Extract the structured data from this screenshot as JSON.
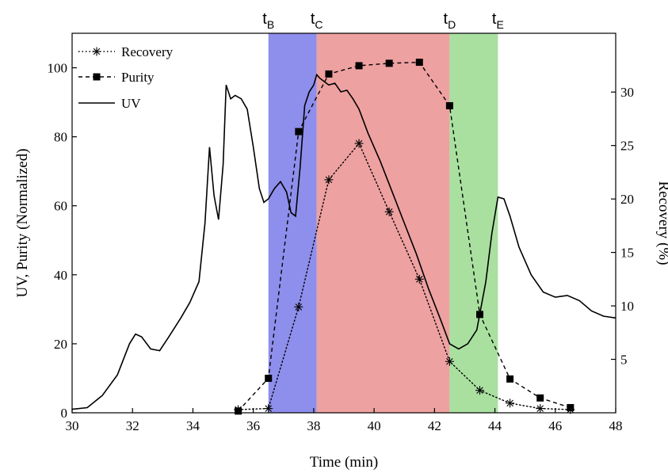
{
  "chart_data": {
    "type": "line",
    "xlabel": "Time (min)",
    "ylabel_left": "UV, Purity (Normalized)",
    "ylabel_right": "Recovery (%)",
    "xlim": [
      30,
      48
    ],
    "ylim_left": [
      0,
      110
    ],
    "ylim_right": [
      0,
      35.5
    ],
    "x_ticks": [
      "30",
      "32",
      "34",
      "36",
      "38",
      "40",
      "42",
      "44",
      "46",
      "48"
    ],
    "y_left_ticks": [
      "0",
      "20",
      "40",
      "60",
      "80",
      "100"
    ],
    "y_right_ticks": [
      "5",
      "10",
      "15",
      "20",
      "25",
      "30"
    ],
    "grid": false,
    "legend_position": "top-left",
    "regions": [
      {
        "name": "t",
        "sub": "B",
        "x0": 36.5,
        "x1": 38.1,
        "color": "#8e8eec"
      },
      {
        "name": "t",
        "sub": "C",
        "x0": 38.1,
        "x1": 42.5,
        "color": "#eea1a1"
      },
      {
        "name": "t",
        "sub": "D",
        "x0": 42.5,
        "x1": 44.1,
        "color": "#a9e0a0"
      },
      {
        "name": "t",
        "sub": "E",
        "x0": 44.1,
        "x1": 44.1,
        "color": "#a9e0a0"
      }
    ],
    "series": [
      {
        "name": "Recovery",
        "axis": "right",
        "style": "dotted",
        "marker": "asterisk",
        "x": [
          35.5,
          36.5,
          37.5,
          38.5,
          39.5,
          40.5,
          41.5,
          42.5,
          43.5,
          44.5,
          45.5,
          46.5
        ],
        "y": [
          0.3,
          0.4,
          9.9,
          21.8,
          25.2,
          18.8,
          12.5,
          4.8,
          2.1,
          0.9,
          0.4,
          0.3
        ]
      },
      {
        "name": "Purity",
        "axis": "left",
        "style": "dashed",
        "marker": "square",
        "x": [
          35.5,
          36.5,
          37.5,
          38.5,
          39.5,
          40.5,
          41.5,
          42.5,
          43.5,
          44.5,
          45.5,
          46.5
        ],
        "y": [
          0.5,
          10,
          81.5,
          98.2,
          100.6,
          101.3,
          101.6,
          89,
          28.5,
          9.8,
          4.3,
          1.5
        ]
      },
      {
        "name": "UV",
        "axis": "left",
        "style": "solid",
        "marker": "none",
        "x": [
          30,
          30.5,
          31,
          31.5,
          31.9,
          32.1,
          32.3,
          32.6,
          32.9,
          33.2,
          33.6,
          33.9,
          34.2,
          34.4,
          34.55,
          34.7,
          34.85,
          35.0,
          35.1,
          35.25,
          35.4,
          35.6,
          35.8,
          36.0,
          36.2,
          36.35,
          36.5,
          36.7,
          36.9,
          37.1,
          37.25,
          37.4,
          37.55,
          37.7,
          37.85,
          38.0,
          38.1,
          38.2,
          38.35,
          38.5,
          38.7,
          38.9,
          39.1,
          39.3,
          39.5,
          39.8,
          40.2,
          40.6,
          41.0,
          41.4,
          41.8,
          42.2,
          42.5,
          42.8,
          43.1,
          43.4,
          43.7,
          43.9,
          44.1,
          44.3,
          44.5,
          44.8,
          45.2,
          45.6,
          46.0,
          46.4,
          46.8,
          47.2,
          47.6,
          48.0
        ],
        "y": [
          1,
          1.5,
          5,
          11,
          20,
          22.8,
          22,
          18.5,
          18,
          22,
          27.5,
          32,
          38,
          55,
          77,
          63,
          56,
          72,
          95,
          91,
          92,
          91,
          88,
          77,
          65,
          61,
          62,
          65,
          67,
          64,
          58,
          57,
          71,
          89,
          93,
          95,
          98,
          97,
          96,
          95,
          95.5,
          93,
          93.5,
          91,
          88,
          81,
          73,
          64,
          55,
          46,
          36,
          27,
          20,
          18.5,
          20,
          24,
          38,
          52,
          62.5,
          62,
          57,
          48,
          40,
          35,
          33.5,
          34,
          32.5,
          29.5,
          28,
          27.5
        ]
      }
    ]
  }
}
